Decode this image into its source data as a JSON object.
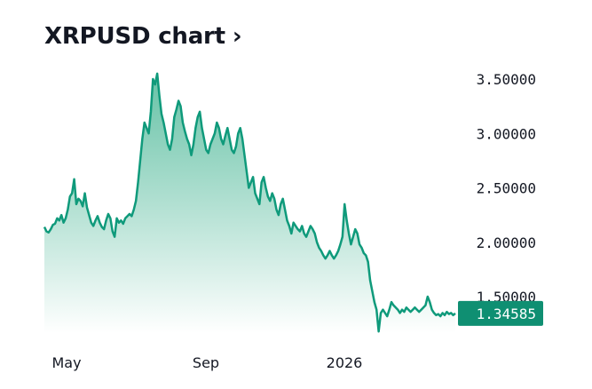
{
  "header": {
    "title": "XRPUSD chart",
    "chevron_icon": "chevron-right-icon"
  },
  "colors": {
    "line": "#0f9a7b",
    "fill_top": "#5fbfa2",
    "fill_bottom": "#ffffff",
    "badge_bg": "#0f8f72",
    "text": "#131722"
  },
  "chart_data": {
    "type": "area",
    "title": "XRPUSD chart",
    "xlabel": "",
    "ylabel": "",
    "x_ticks": [
      "May",
      "Sep",
      "2026"
    ],
    "y_ticks": [
      "1.50000",
      "2.00000",
      "2.50000",
      "3.00000",
      "3.50000"
    ],
    "ylim": [
      1.2,
      3.6
    ],
    "last_value_label": "1.34585",
    "grid": false,
    "legend": "none",
    "series": [
      {
        "values": [
          2.14,
          2.1,
          2.09,
          2.12,
          2.16,
          2.17,
          2.22,
          2.2,
          2.25,
          2.18,
          2.22,
          2.3,
          2.42,
          2.45,
          2.58,
          2.35,
          2.4,
          2.38,
          2.33,
          2.45,
          2.32,
          2.25,
          2.18,
          2.15,
          2.2,
          2.24,
          2.18,
          2.14,
          2.12,
          2.2,
          2.26,
          2.22,
          2.1,
          2.05,
          2.22,
          2.18,
          2.2,
          2.17,
          2.22,
          2.24,
          2.26,
          2.24,
          2.3,
          2.38,
          2.55,
          2.75,
          2.95,
          3.1,
          3.05,
          3.0,
          3.2,
          3.5,
          3.45,
          3.55,
          3.35,
          3.18,
          3.1,
          3.0,
          2.9,
          2.85,
          2.95,
          3.15,
          3.22,
          3.3,
          3.25,
          3.1,
          3.02,
          2.95,
          2.9,
          2.8,
          2.9,
          3.05,
          3.15,
          3.2,
          3.05,
          2.95,
          2.85,
          2.82,
          2.9,
          2.95,
          3.0,
          3.1,
          3.05,
          2.95,
          2.9,
          2.98,
          3.05,
          2.95,
          2.85,
          2.82,
          2.88,
          3.0,
          3.05,
          2.95,
          2.8,
          2.65,
          2.5,
          2.55,
          2.6,
          2.45,
          2.4,
          2.35,
          2.55,
          2.6,
          2.5,
          2.42,
          2.38,
          2.45,
          2.4,
          2.3,
          2.25,
          2.35,
          2.4,
          2.3,
          2.2,
          2.15,
          2.08,
          2.18,
          2.15,
          2.12,
          2.1,
          2.15,
          2.08,
          2.05,
          2.1,
          2.15,
          2.12,
          2.08,
          2.0,
          1.95,
          1.92,
          1.88,
          1.85,
          1.88,
          1.92,
          1.88,
          1.85,
          1.88,
          1.92,
          1.98,
          2.05,
          2.35,
          2.2,
          2.08,
          1.98,
          2.05,
          2.12,
          2.08,
          1.98,
          1.95,
          1.9,
          1.88,
          1.82,
          1.65,
          1.55,
          1.45,
          1.38,
          1.18,
          1.35,
          1.38,
          1.35,
          1.32,
          1.38,
          1.45,
          1.42,
          1.4,
          1.38,
          1.35,
          1.38,
          1.36,
          1.4,
          1.38,
          1.36,
          1.38,
          1.4,
          1.38,
          1.36,
          1.38,
          1.4,
          1.42,
          1.5,
          1.45,
          1.38,
          1.35,
          1.33,
          1.34,
          1.32,
          1.35,
          1.33,
          1.36,
          1.34,
          1.35,
          1.33,
          1.34585
        ]
      }
    ]
  }
}
